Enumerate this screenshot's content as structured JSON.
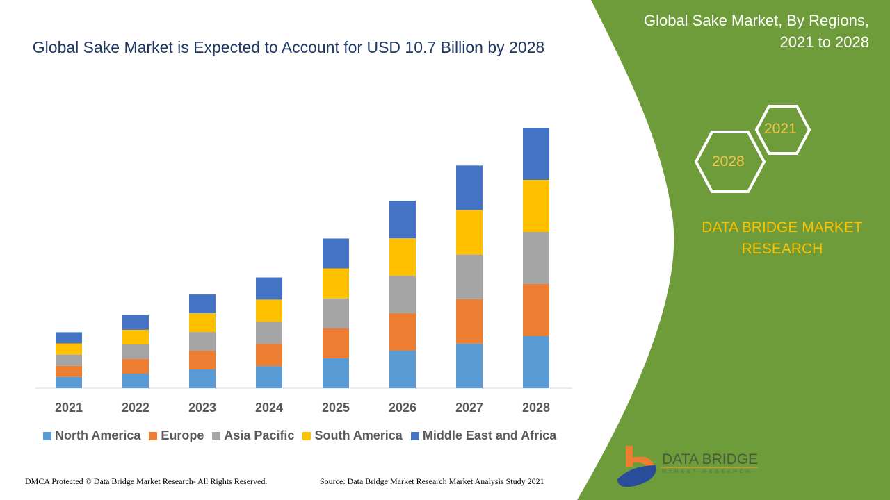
{
  "title": "Global Sake Market is Expected to Account for USD 10.7 Billion by 2028",
  "side_panel": {
    "title_line1": "Global Sake Market, By Regions,",
    "title_line2": "2021 to 2028",
    "hex_labels": [
      "2021",
      "2028"
    ],
    "brand_line1": "DATA BRIDGE MARKET",
    "brand_line2": "RESEARCH",
    "panel_color": "#6f9c3a"
  },
  "logo": {
    "text": "DATA BRIDGE",
    "subtext": "MARKET RESEARCH"
  },
  "footer": {
    "left": "DMCA Protected © Data Bridge Market Research- All Rights Reserved.",
    "right": "Source: Data Bridge Market Research Market Analysis Study 2021"
  },
  "chart_data": {
    "type": "bar",
    "stacked": true,
    "title": "Global Sake Market is Expected to Account for USD 10.7 Billion by 2028",
    "categories": [
      "2021",
      "2022",
      "2023",
      "2024",
      "2025",
      "2026",
      "2027",
      "2028"
    ],
    "series": [
      {
        "name": "North America",
        "color": "#5b9bd5",
        "values": [
          0.46,
          0.6,
          0.77,
          0.91,
          1.23,
          1.54,
          1.83,
          2.14
        ]
      },
      {
        "name": "Europe",
        "color": "#ed7d31",
        "values": [
          0.46,
          0.6,
          0.77,
          0.91,
          1.23,
          1.54,
          1.83,
          2.14
        ]
      },
      {
        "name": "Asia Pacific",
        "color": "#a5a5a5",
        "values": [
          0.46,
          0.6,
          0.77,
          0.91,
          1.23,
          1.54,
          1.83,
          2.14
        ]
      },
      {
        "name": "South America",
        "color": "#ffc000",
        "values": [
          0.46,
          0.6,
          0.77,
          0.91,
          1.23,
          1.54,
          1.83,
          2.14
        ]
      },
      {
        "name": "Middle East and Africa",
        "color": "#4472c4",
        "values": [
          0.46,
          0.6,
          0.77,
          0.91,
          1.23,
          1.54,
          1.83,
          2.14
        ]
      }
    ],
    "ylim": [
      0,
      10.7
    ],
    "y_axis_shown": false,
    "grid": false,
    "legend": "bottom"
  }
}
